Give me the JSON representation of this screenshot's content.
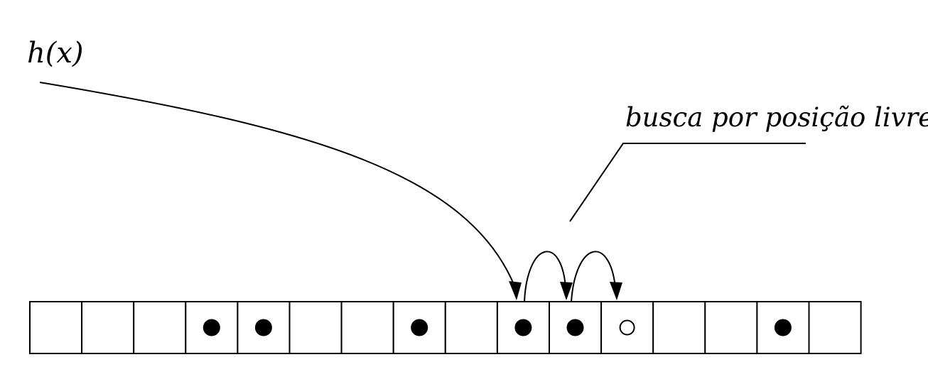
{
  "labels": {
    "hash_function": "h(x)",
    "search_note": "busca por posição livre"
  },
  "table": {
    "cell_count": 16,
    "occupied_slots": [
      3,
      4,
      7,
      9,
      10,
      14
    ],
    "free_slot_found": 11,
    "hash_target_slot": 9,
    "probe_sequence": [
      9,
      10,
      11
    ]
  },
  "colors": {
    "stroke": "#000000",
    "fill_occupied": "#000000",
    "fill_free": "#ffffff",
    "background": "#ffffff"
  }
}
